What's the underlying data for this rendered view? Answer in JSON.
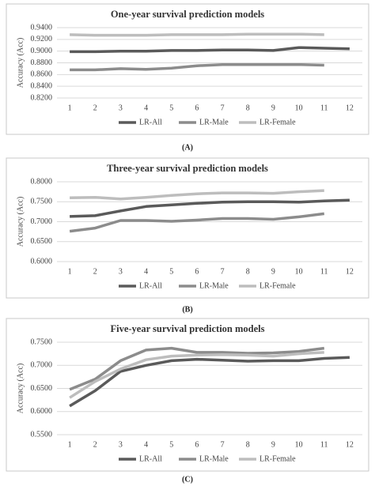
{
  "chart_data": [
    {
      "type": "line",
      "title": "One-year survival prediction models",
      "label": "(A)",
      "y_label": "Accuracy (Acc)",
      "categories": [
        "1",
        "2",
        "3",
        "4",
        "5",
        "6",
        "7",
        "8",
        "9",
        "10",
        "11",
        "12"
      ],
      "ylim": [
        0.82,
        0.94
      ],
      "yticks": [
        {
          "value": 0.82,
          "label": "0.8200"
        },
        {
          "value": 0.84,
          "label": "0.8400"
        },
        {
          "value": 0.86,
          "label": "0.8600"
        },
        {
          "value": 0.88,
          "label": "0.8800"
        },
        {
          "value": 0.9,
          "label": "0.9000"
        },
        {
          "value": 0.92,
          "label": "0.9200"
        },
        {
          "value": 0.94,
          "label": "0.9400"
        }
      ],
      "grid": true,
      "legend": "bottom",
      "series": [
        {
          "name": "LR-All",
          "color": "#5a5a5a",
          "values": [
            0.899,
            0.899,
            0.9,
            0.9,
            0.901,
            0.901,
            0.902,
            0.902,
            0.901,
            0.906,
            0.905,
            0.904
          ]
        },
        {
          "name": "LR-Male",
          "color": "#8c8c8c",
          "values": [
            0.868,
            0.868,
            0.87,
            0.869,
            0.871,
            0.875,
            0.877,
            0.877,
            0.877,
            0.877,
            0.876,
            null
          ]
        },
        {
          "name": "LR-Female",
          "color": "#bdbdbd",
          "values": [
            0.928,
            0.927,
            0.927,
            0.927,
            0.928,
            0.928,
            0.928,
            0.929,
            0.929,
            0.929,
            0.928,
            null
          ]
        }
      ]
    },
    {
      "type": "line",
      "title": "Three-year survival prediction models",
      "label": "(B)",
      "y_label": "Accuracy (Acc)",
      "categories": [
        "1",
        "2",
        "3",
        "4",
        "5",
        "6",
        "7",
        "8",
        "9",
        "10",
        "11",
        "12"
      ],
      "ylim": [
        0.6,
        0.8
      ],
      "yticks": [
        {
          "value": 0.6,
          "label": "0.6000"
        },
        {
          "value": 0.65,
          "label": "0.6500"
        },
        {
          "value": 0.7,
          "label": "0.7000"
        },
        {
          "value": 0.75,
          "label": "0.7500"
        },
        {
          "value": 0.8,
          "label": "0.8000"
        }
      ],
      "grid": true,
      "legend": "bottom",
      "series": [
        {
          "name": "LR-All",
          "color": "#5a5a5a",
          "values": [
            0.713,
            0.715,
            0.727,
            0.738,
            0.742,
            0.746,
            0.749,
            0.75,
            0.75,
            0.749,
            0.752,
            0.754
          ]
        },
        {
          "name": "LR-Male",
          "color": "#8c8c8c",
          "values": [
            0.676,
            0.684,
            0.703,
            0.703,
            0.701,
            0.704,
            0.708,
            0.708,
            0.706,
            0.712,
            0.72,
            null
          ]
        },
        {
          "name": "LR-Female",
          "color": "#bdbdbd",
          "values": [
            0.76,
            0.761,
            0.757,
            0.761,
            0.766,
            0.77,
            0.772,
            0.772,
            0.771,
            0.775,
            0.778,
            null
          ]
        }
      ]
    },
    {
      "type": "line",
      "title": "Five-year survival prediction models",
      "label": "(C)",
      "y_label": "Accuracy (Acc)",
      "categories": [
        "1",
        "2",
        "3",
        "4",
        "5",
        "6",
        "7",
        "8",
        "9",
        "10",
        "11",
        "12"
      ],
      "ylim": [
        0.55,
        0.75
      ],
      "yticks": [
        {
          "value": 0.55,
          "label": "0.5500"
        },
        {
          "value": 0.6,
          "label": "0.6000"
        },
        {
          "value": 0.65,
          "label": "0.6500"
        },
        {
          "value": 0.7,
          "label": "0.7000"
        },
        {
          "value": 0.75,
          "label": "0.7500"
        }
      ],
      "grid": true,
      "legend": "bottom",
      "series": [
        {
          "name": "LR-All",
          "color": "#5a5a5a",
          "values": [
            0.612,
            0.645,
            0.687,
            0.7,
            0.71,
            0.713,
            0.711,
            0.709,
            0.71,
            0.71,
            0.715,
            0.717
          ]
        },
        {
          "name": "LR-Male",
          "color": "#8c8c8c",
          "values": [
            0.648,
            0.67,
            0.71,
            0.733,
            0.737,
            0.728,
            0.728,
            0.726,
            0.727,
            0.73,
            0.737,
            null
          ]
        },
        {
          "name": "LR-Female",
          "color": "#bdbdbd",
          "values": [
            0.63,
            0.665,
            0.692,
            0.712,
            0.72,
            0.722,
            0.723,
            0.722,
            0.72,
            0.725,
            0.728,
            null
          ]
        }
      ]
    }
  ]
}
